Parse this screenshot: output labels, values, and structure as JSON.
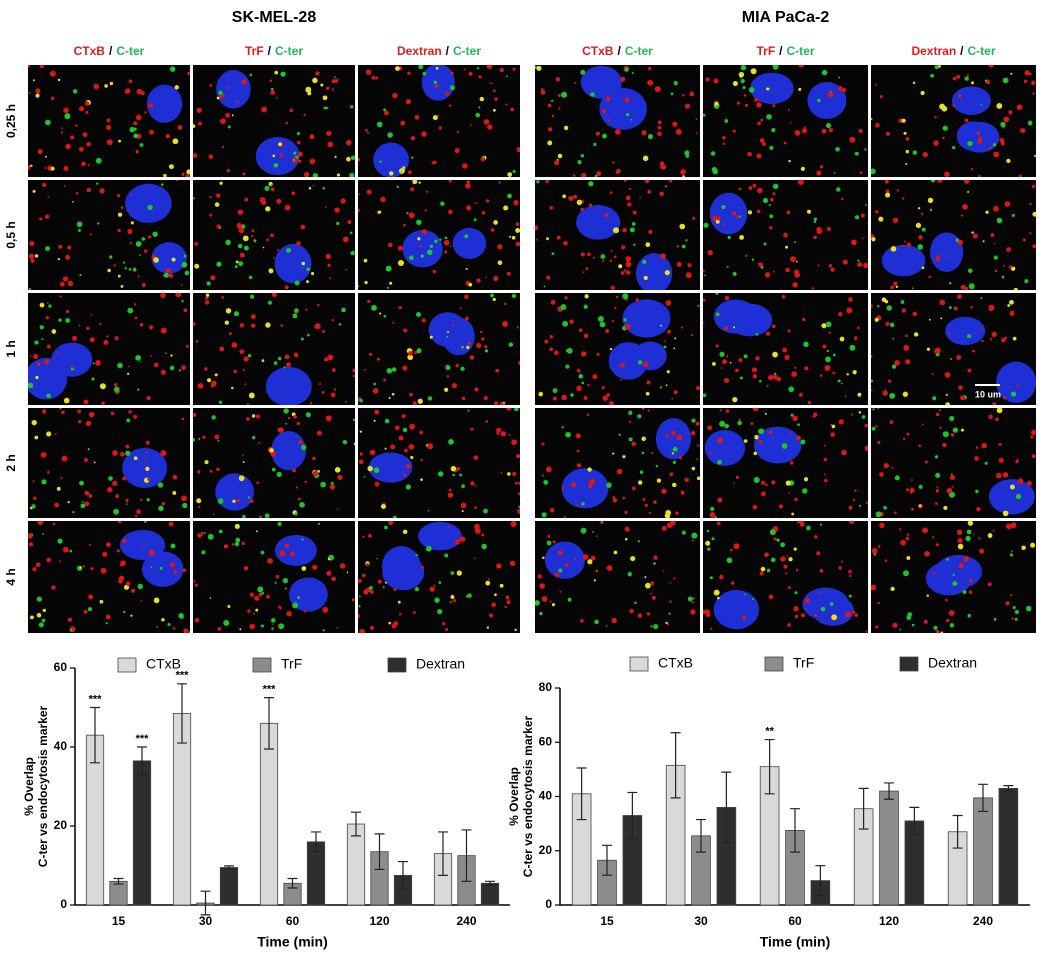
{
  "panels": [
    {
      "title": "SK-MEL-28",
      "columns": [
        {
          "marker": "CTxB",
          "separator": "/",
          "reporter": "C-ter"
        },
        {
          "marker": "TrF",
          "separator": "/",
          "reporter": "C-ter"
        },
        {
          "marker": "Dextran",
          "separator": "/",
          "reporter": "C-ter"
        }
      ]
    },
    {
      "title": "MIA PaCa-2",
      "columns": [
        {
          "marker": "CTxB",
          "separator": "/",
          "reporter": "C-ter"
        },
        {
          "marker": "TrF",
          "separator": "/",
          "reporter": "C-ter"
        },
        {
          "marker": "Dextran",
          "separator": "/",
          "reporter": "C-ter"
        }
      ]
    }
  ],
  "row_labels": [
    "0,25 h",
    "0,5 h",
    "1 h",
    "2 h",
    "4 h"
  ],
  "scale_bar": "10 um",
  "chart_data": [
    {
      "type": "bar",
      "xlabel": "Time (min)",
      "ylabel": [
        "% Overlap",
        "C-ter vs endocytosis marker"
      ],
      "categories": [
        "15",
        "30",
        "60",
        "120",
        "240"
      ],
      "ylim": [
        0,
        60
      ],
      "yticks": [
        0,
        20,
        40,
        60
      ],
      "series": [
        {
          "name": "CTxB",
          "color": "#d9d9d9",
          "values": [
            43,
            48.5,
            46,
            20.5,
            13
          ],
          "errors": [
            7,
            7.5,
            6.5,
            3,
            5.5
          ],
          "significance": [
            "***",
            "***",
            "***",
            null,
            null
          ]
        },
        {
          "name": "TrF",
          "color": "#8c8c8c",
          "values": [
            6,
            0.5,
            5.5,
            13.5,
            12.5
          ],
          "errors": [
            0.7,
            3,
            1.2,
            4.5,
            6.5
          ],
          "significance": [
            null,
            null,
            null,
            null,
            null
          ]
        },
        {
          "name": "Dextran",
          "color": "#2e2e2e",
          "values": [
            36.5,
            9.5,
            16,
            7.5,
            5.5
          ],
          "errors": [
            3.5,
            0.4,
            2.5,
            3.5,
            0.5
          ],
          "significance": [
            "***",
            null,
            null,
            null,
            null
          ]
        }
      ]
    },
    {
      "type": "bar",
      "xlabel": "Time (min)",
      "ylabel": [
        "% Overlap",
        "C-ter vs endocytosis marker"
      ],
      "categories": [
        "15",
        "30",
        "60",
        "120",
        "240"
      ],
      "ylim": [
        0,
        80
      ],
      "yticks": [
        0,
        20,
        40,
        60,
        80
      ],
      "series": [
        {
          "name": "CTxB",
          "color": "#d9d9d9",
          "values": [
            41,
            51.5,
            51,
            35.5,
            27
          ],
          "errors": [
            9.5,
            12,
            10,
            7.5,
            6
          ],
          "significance": [
            null,
            null,
            "**",
            null,
            null
          ]
        },
        {
          "name": "TrF",
          "color": "#8c8c8c",
          "values": [
            16.5,
            25.5,
            27.5,
            42,
            39.5
          ],
          "errors": [
            5.5,
            6,
            8,
            3,
            5
          ],
          "significance": [
            null,
            null,
            null,
            null,
            null
          ]
        },
        {
          "name": "Dextran",
          "color": "#2e2e2e",
          "values": [
            33,
            36,
            9,
            31,
            43
          ],
          "errors": [
            8.5,
            13,
            5.5,
            5,
            1
          ],
          "significance": [
            null,
            null,
            null,
            null,
            null
          ]
        }
      ]
    }
  ]
}
